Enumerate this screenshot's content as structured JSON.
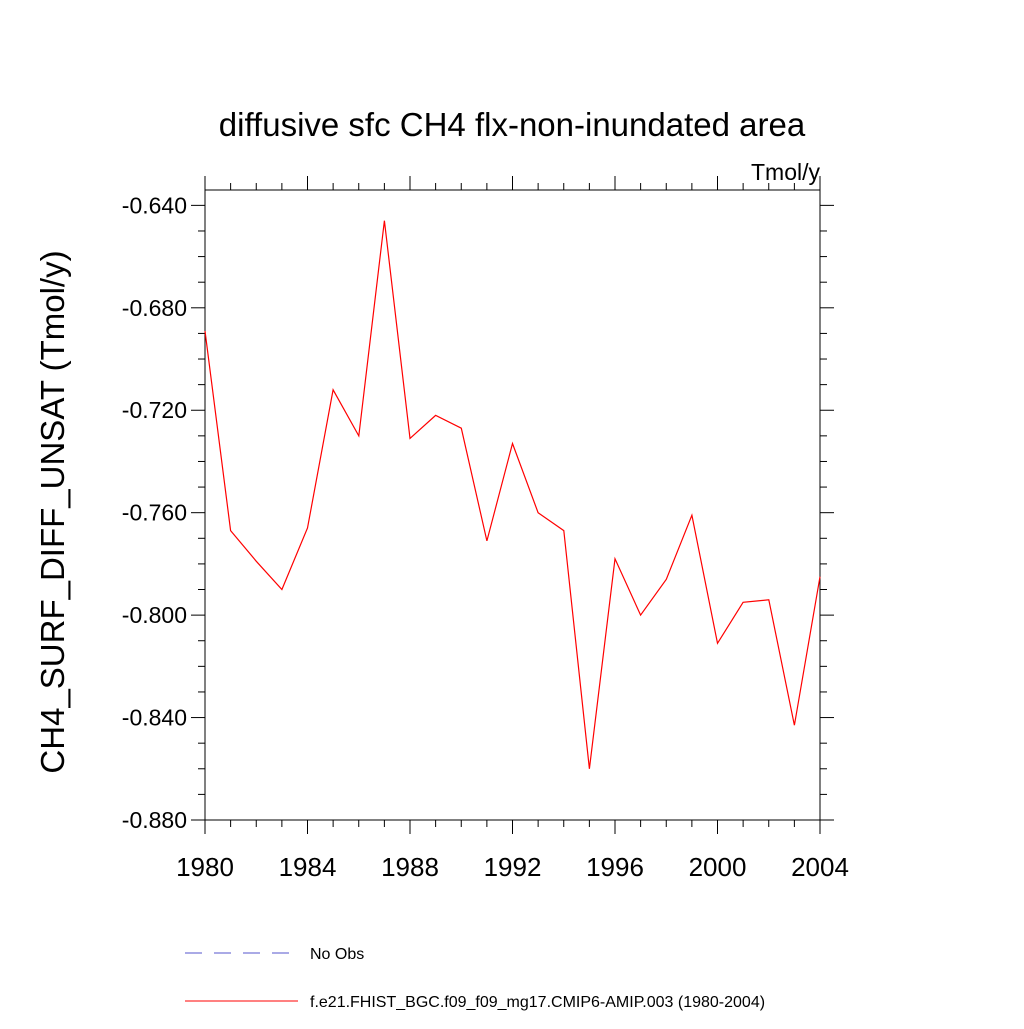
{
  "chart_data": {
    "type": "line",
    "title": "diffusive sfc CH4 flx-non-inundated area",
    "units": "Tmol/y",
    "xlabel": "",
    "ylabel": "CH4_SURF_DIFF_UNSAT  (Tmol/y)",
    "xlim": [
      1980,
      2004
    ],
    "ylim": [
      -0.88,
      -0.634
    ],
    "x_ticks": [
      1980,
      1984,
      1988,
      1992,
      1996,
      2000,
      2004
    ],
    "x_tick_labels": [
      "1980",
      "1984",
      "1988",
      "1992",
      "1996",
      "2000",
      "2004"
    ],
    "y_ticks": [
      -0.64,
      -0.68,
      -0.72,
      -0.76,
      -0.8,
      -0.84,
      -0.88
    ],
    "y_tick_labels": [
      "-0.640",
      "-0.680",
      "-0.720",
      "-0.760",
      "-0.800",
      "-0.840",
      "-0.880"
    ],
    "grid": false,
    "legend_position": "bottom",
    "series": [
      {
        "name": "f.e21.FHIST_BGC.f09_f09_mg17.CMIP6-AMIP.003 (1980-2004)",
        "color": "#ff0000",
        "dash": "solid",
        "x": [
          1980,
          1981,
          1982,
          1983,
          1984,
          1985,
          1986,
          1987,
          1988,
          1989,
          1990,
          1991,
          1992,
          1993,
          1994,
          1995,
          1996,
          1997,
          1998,
          1999,
          2000,
          2001,
          2002,
          2003,
          2004
        ],
        "values": [
          -0.689,
          -0.767,
          -0.779,
          -0.79,
          -0.766,
          -0.712,
          -0.73,
          -0.646,
          -0.731,
          -0.722,
          -0.727,
          -0.771,
          -0.733,
          -0.76,
          -0.767,
          -0.86,
          -0.778,
          -0.8,
          -0.786,
          -0.761,
          -0.811,
          -0.795,
          -0.794,
          -0.843,
          -0.785
        ]
      }
    ],
    "legend": [
      {
        "label": "No Obs",
        "color": "#5555cc",
        "dash": "dashed"
      },
      {
        "label": "f.e21.FHIST_BGC.f09_f09_mg17.CMIP6-AMIP.003 (1980-2004)",
        "color": "#ff0000",
        "dash": "solid"
      }
    ]
  }
}
